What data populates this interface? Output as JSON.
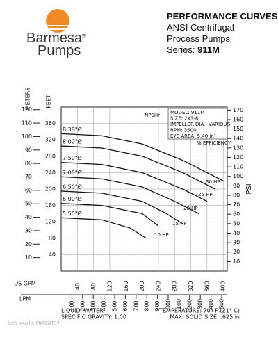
{
  "header": {
    "brand": "Barmesa",
    "reg": "®",
    "brand_sub": "Pumps",
    "title": "PERFORMANCE CURVES",
    "line1": "ANSI Centrifugal",
    "line2": "Process Pumps",
    "series_label": "Series:",
    "series": "911M"
  },
  "chart_data": {
    "type": "line",
    "y_label_left": "FEET",
    "meters_label": "METERS",
    "y2_label": "PSI",
    "x_label": "US GPM",
    "x2_label": "LPM",
    "xlim": [
      0,
      410
    ],
    "xticks": [
      40,
      80,
      120,
      160,
      200,
      240,
      280,
      320,
      360,
      400
    ],
    "x2lim": [
      0,
      1552
    ],
    "x2ticks": [
      100,
      200,
      300,
      400,
      500,
      600,
      700,
      800,
      900,
      1000,
      1100,
      1200,
      1300,
      1400,
      1500
    ],
    "ylim": [
      0,
      400
    ],
    "yticks": [
      40,
      80,
      120,
      160,
      200,
      240,
      280,
      320,
      360
    ],
    "meters_lim": [
      0,
      121.92
    ],
    "meters_ticks": [
      10,
      20,
      30,
      40,
      50,
      60,
      70,
      80,
      90,
      100,
      110,
      120
    ],
    "y2lim": [
      0,
      173.2
    ],
    "y2ticks": [
      10,
      20,
      30,
      40,
      50,
      60,
      70,
      80,
      90,
      100,
      110,
      120,
      130,
      140,
      150,
      160,
      170
    ],
    "grid": true,
    "series": [
      {
        "name": "8.38\"Ø",
        "color": "#111111",
        "x": [
          0,
          100,
          200,
          300,
          400
        ],
        "values": [
          335,
          330,
          310,
          270,
          220
        ]
      },
      {
        "name": "8.00\"Ø",
        "color": "#111111",
        "x": [
          0,
          100,
          200,
          300,
          380
        ],
        "values": [
          305,
          300,
          280,
          240,
          200
        ]
      },
      {
        "name": "7.50\"Ø",
        "color": "#111111",
        "x": [
          0,
          100,
          200,
          300,
          360
        ],
        "values": [
          265,
          260,
          240,
          200,
          170
        ]
      },
      {
        "name": "7.00\"Ø",
        "color": "#111111",
        "x": [
          0,
          100,
          200,
          280,
          340
        ],
        "values": [
          230,
          225,
          205,
          170,
          140
        ]
      },
      {
        "name": "6.50\"Ø",
        "color": "#111111",
        "x": [
          0,
          100,
          200,
          260,
          300
        ],
        "values": [
          195,
          190,
          170,
          140,
          115
        ]
      },
      {
        "name": "6.00\"Ø",
        "color": "#111111",
        "x": [
          0,
          100,
          200,
          240
        ],
        "values": [
          165,
          160,
          140,
          110
        ]
      },
      {
        "name": "5.50\"Ø",
        "color": "#111111",
        "x": [
          0,
          100,
          170,
          210
        ],
        "values": [
          130,
          125,
          105,
          80
        ]
      }
    ],
    "info": [
      "MODEL: 911M",
      "SIZE: 2x3-8",
      "IMPELLER DIA.: VARIOUS",
      "RPM: 3500",
      "EYE AREA: 5.40 in²"
    ],
    "annotations": [
      "NPSHr",
      "% EFFICIENCY",
      "10 HP",
      "15 HP",
      "20 HP",
      "25 HP",
      "30 HP"
    ]
  },
  "footer": {
    "liquid": "LIQUID: WATER",
    "gravity": "SPECIFIC GRAVITY: 1.00",
    "temperature": "TEMPERATURE: 70° F (21° C)",
    "solid": "MAX. SOLID SIZE: .625 in",
    "updated": "Last update: 06/02/2017"
  }
}
